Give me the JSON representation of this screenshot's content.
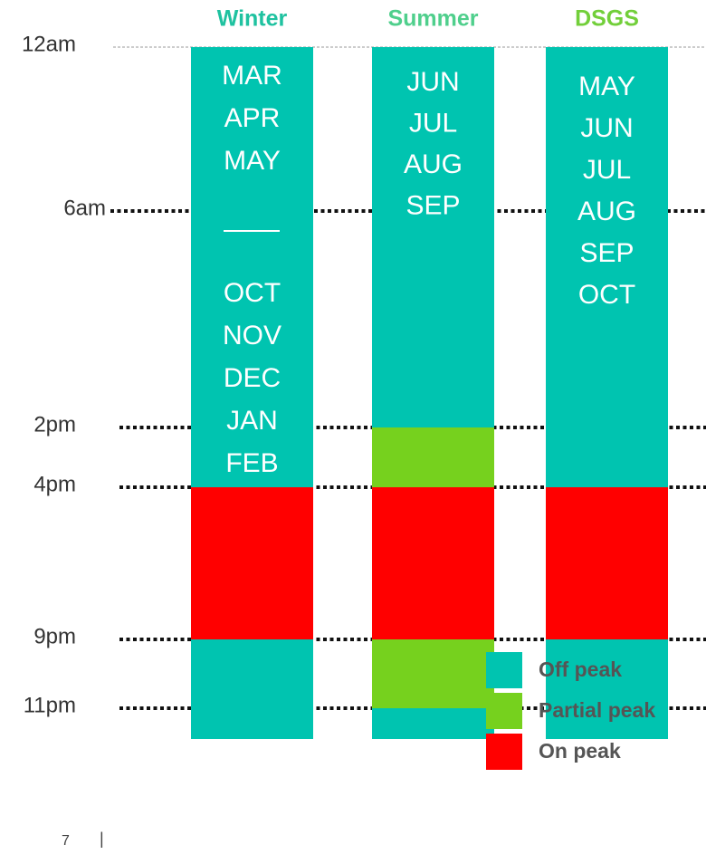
{
  "time_marks": [
    "12am",
    "6am",
    "2pm",
    "4pm",
    "9pm",
    "11pm"
  ],
  "columns": [
    {
      "title": "Winter",
      "title_color": "#1fc2a0",
      "months": [
        [
          "MAR",
          "APR",
          "MAY"
        ],
        [
          "OCT",
          "NOV",
          "DEC",
          "JAN",
          "FEB"
        ]
      ],
      "segments": [
        {
          "from": "12am",
          "to": "4pm",
          "color": "#00c4b0"
        },
        {
          "from": "4pm",
          "to": "9pm",
          "color": "#ff0000"
        },
        {
          "from": "9pm",
          "color": "#00c4b0"
        }
      ]
    },
    {
      "title": "Summer",
      "title_color": "#4fcf8c",
      "months": [
        [
          "JUN",
          "JUL",
          "AUG",
          "SEP"
        ]
      ],
      "segments": [
        {
          "from": "12am",
          "to": "2pm",
          "color": "#00c4b0"
        },
        {
          "from": "2pm",
          "to": "4pm",
          "color": "#76d11e"
        },
        {
          "from": "4pm",
          "to": "9pm",
          "color": "#ff0000"
        },
        {
          "from": "9pm",
          "to": "11pm",
          "color": "#76d11e"
        },
        {
          "from": "11pm",
          "color": "#00c4b0"
        }
      ]
    },
    {
      "title": "DSGS",
      "title_color": "#72cf3a",
      "months": [
        [
          "MAY",
          "JUN",
          "JUL",
          "AUG",
          "SEP",
          "OCT"
        ]
      ],
      "segments": [
        {
          "from": "12am",
          "to": "4pm",
          "color": "#00c4b0"
        },
        {
          "from": "4pm",
          "to": "9pm",
          "color": "#ff0000"
        },
        {
          "from": "9pm",
          "color": "#00c4b0"
        }
      ]
    }
  ],
  "legend": [
    {
      "label": "Off peak",
      "color": "#00c4b0"
    },
    {
      "label": "Partial peak",
      "color": "#76d11e"
    },
    {
      "label": "On peak",
      "color": "#ff0000"
    }
  ],
  "footer": {
    "page": "7",
    "separator": "|"
  }
}
